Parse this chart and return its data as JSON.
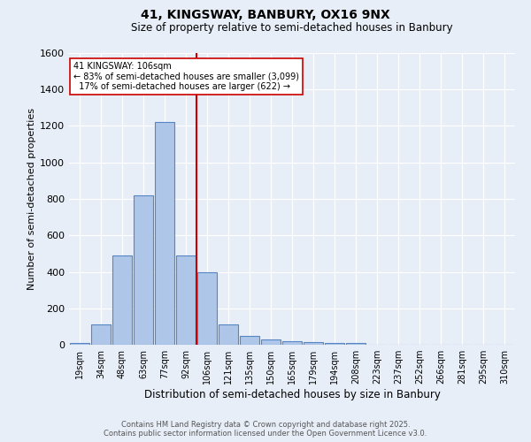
{
  "title_line1": "41, KINGSWAY, BANBURY, OX16 9NX",
  "title_line2": "Size of property relative to semi-detached houses in Banbury",
  "xlabel": "Distribution of semi-detached houses by size in Banbury",
  "ylabel": "Number of semi-detached properties",
  "categories": [
    "19sqm",
    "34sqm",
    "48sqm",
    "63sqm",
    "77sqm",
    "92sqm",
    "106sqm",
    "121sqm",
    "135sqm",
    "150sqm",
    "165sqm",
    "179sqm",
    "194sqm",
    "208sqm",
    "223sqm",
    "237sqm",
    "252sqm",
    "266sqm",
    "281sqm",
    "295sqm",
    "310sqm"
  ],
  "values": [
    10,
    110,
    490,
    820,
    1220,
    490,
    400,
    110,
    48,
    30,
    20,
    13,
    10,
    8,
    0,
    0,
    0,
    0,
    0,
    0,
    0
  ],
  "bar_color": "#aec6e8",
  "bar_edge_color": "#5585c5",
  "background_color": "#e8eef8",
  "grid_color": "#ffffff",
  "vline_color": "#cc0000",
  "annotation_line1": "41 KINGSWAY: 106sqm",
  "annotation_line2": "← 83% of semi-detached houses are smaller (3,099)",
  "annotation_line3": "  17% of semi-detached houses are larger (622) →",
  "annotation_box_color": "#ffffff",
  "annotation_box_edge": "#cc0000",
  "footer_line1": "Contains HM Land Registry data © Crown copyright and database right 2025.",
  "footer_line2": "Contains public sector information licensed under the Open Government Licence v3.0.",
  "ylim": [
    0,
    1600
  ],
  "yticks": [
    0,
    200,
    400,
    600,
    800,
    1000,
    1200,
    1400,
    1600
  ]
}
